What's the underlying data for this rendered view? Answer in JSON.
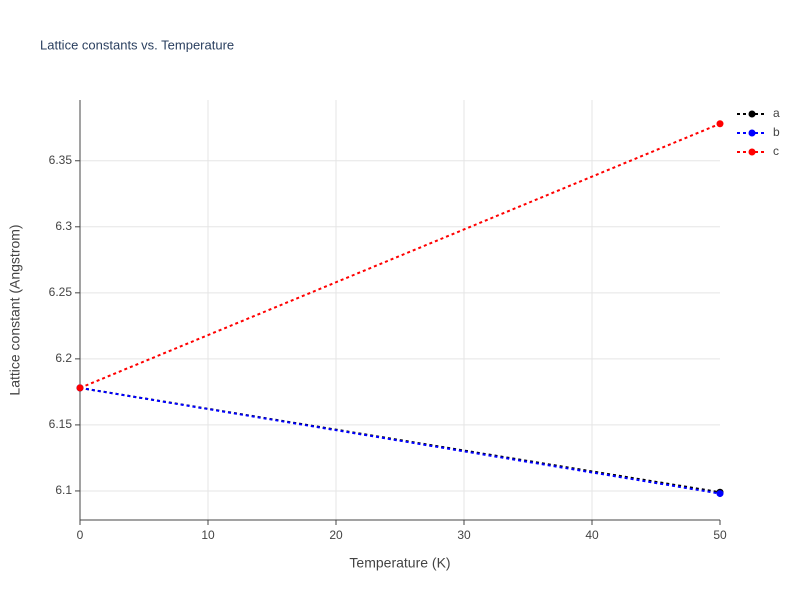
{
  "chart_data": {
    "type": "line",
    "title": "Lattice constants vs. Temperature",
    "x_label": "Temperature (K)",
    "y_label": "Lattice constant (Angstrom)",
    "x": [
      0,
      50
    ],
    "series": [
      {
        "name": "a",
        "color": "#000000",
        "values": [
          6.178,
          6.099
        ]
      },
      {
        "name": "b",
        "color": "#0000ff",
        "values": [
          6.178,
          6.098
        ]
      },
      {
        "name": "c",
        "color": "#ff0000",
        "values": [
          6.178,
          6.378
        ]
      }
    ],
    "xlim": [
      0,
      50
    ],
    "xticks": [
      0,
      10,
      20,
      30,
      40,
      50
    ],
    "ylim": [
      6.078,
      6.396
    ],
    "yticks": [
      6.1,
      6.15,
      6.2,
      6.25,
      6.3,
      6.35
    ],
    "grid": true,
    "legend": "right",
    "line_style": "dotted"
  }
}
